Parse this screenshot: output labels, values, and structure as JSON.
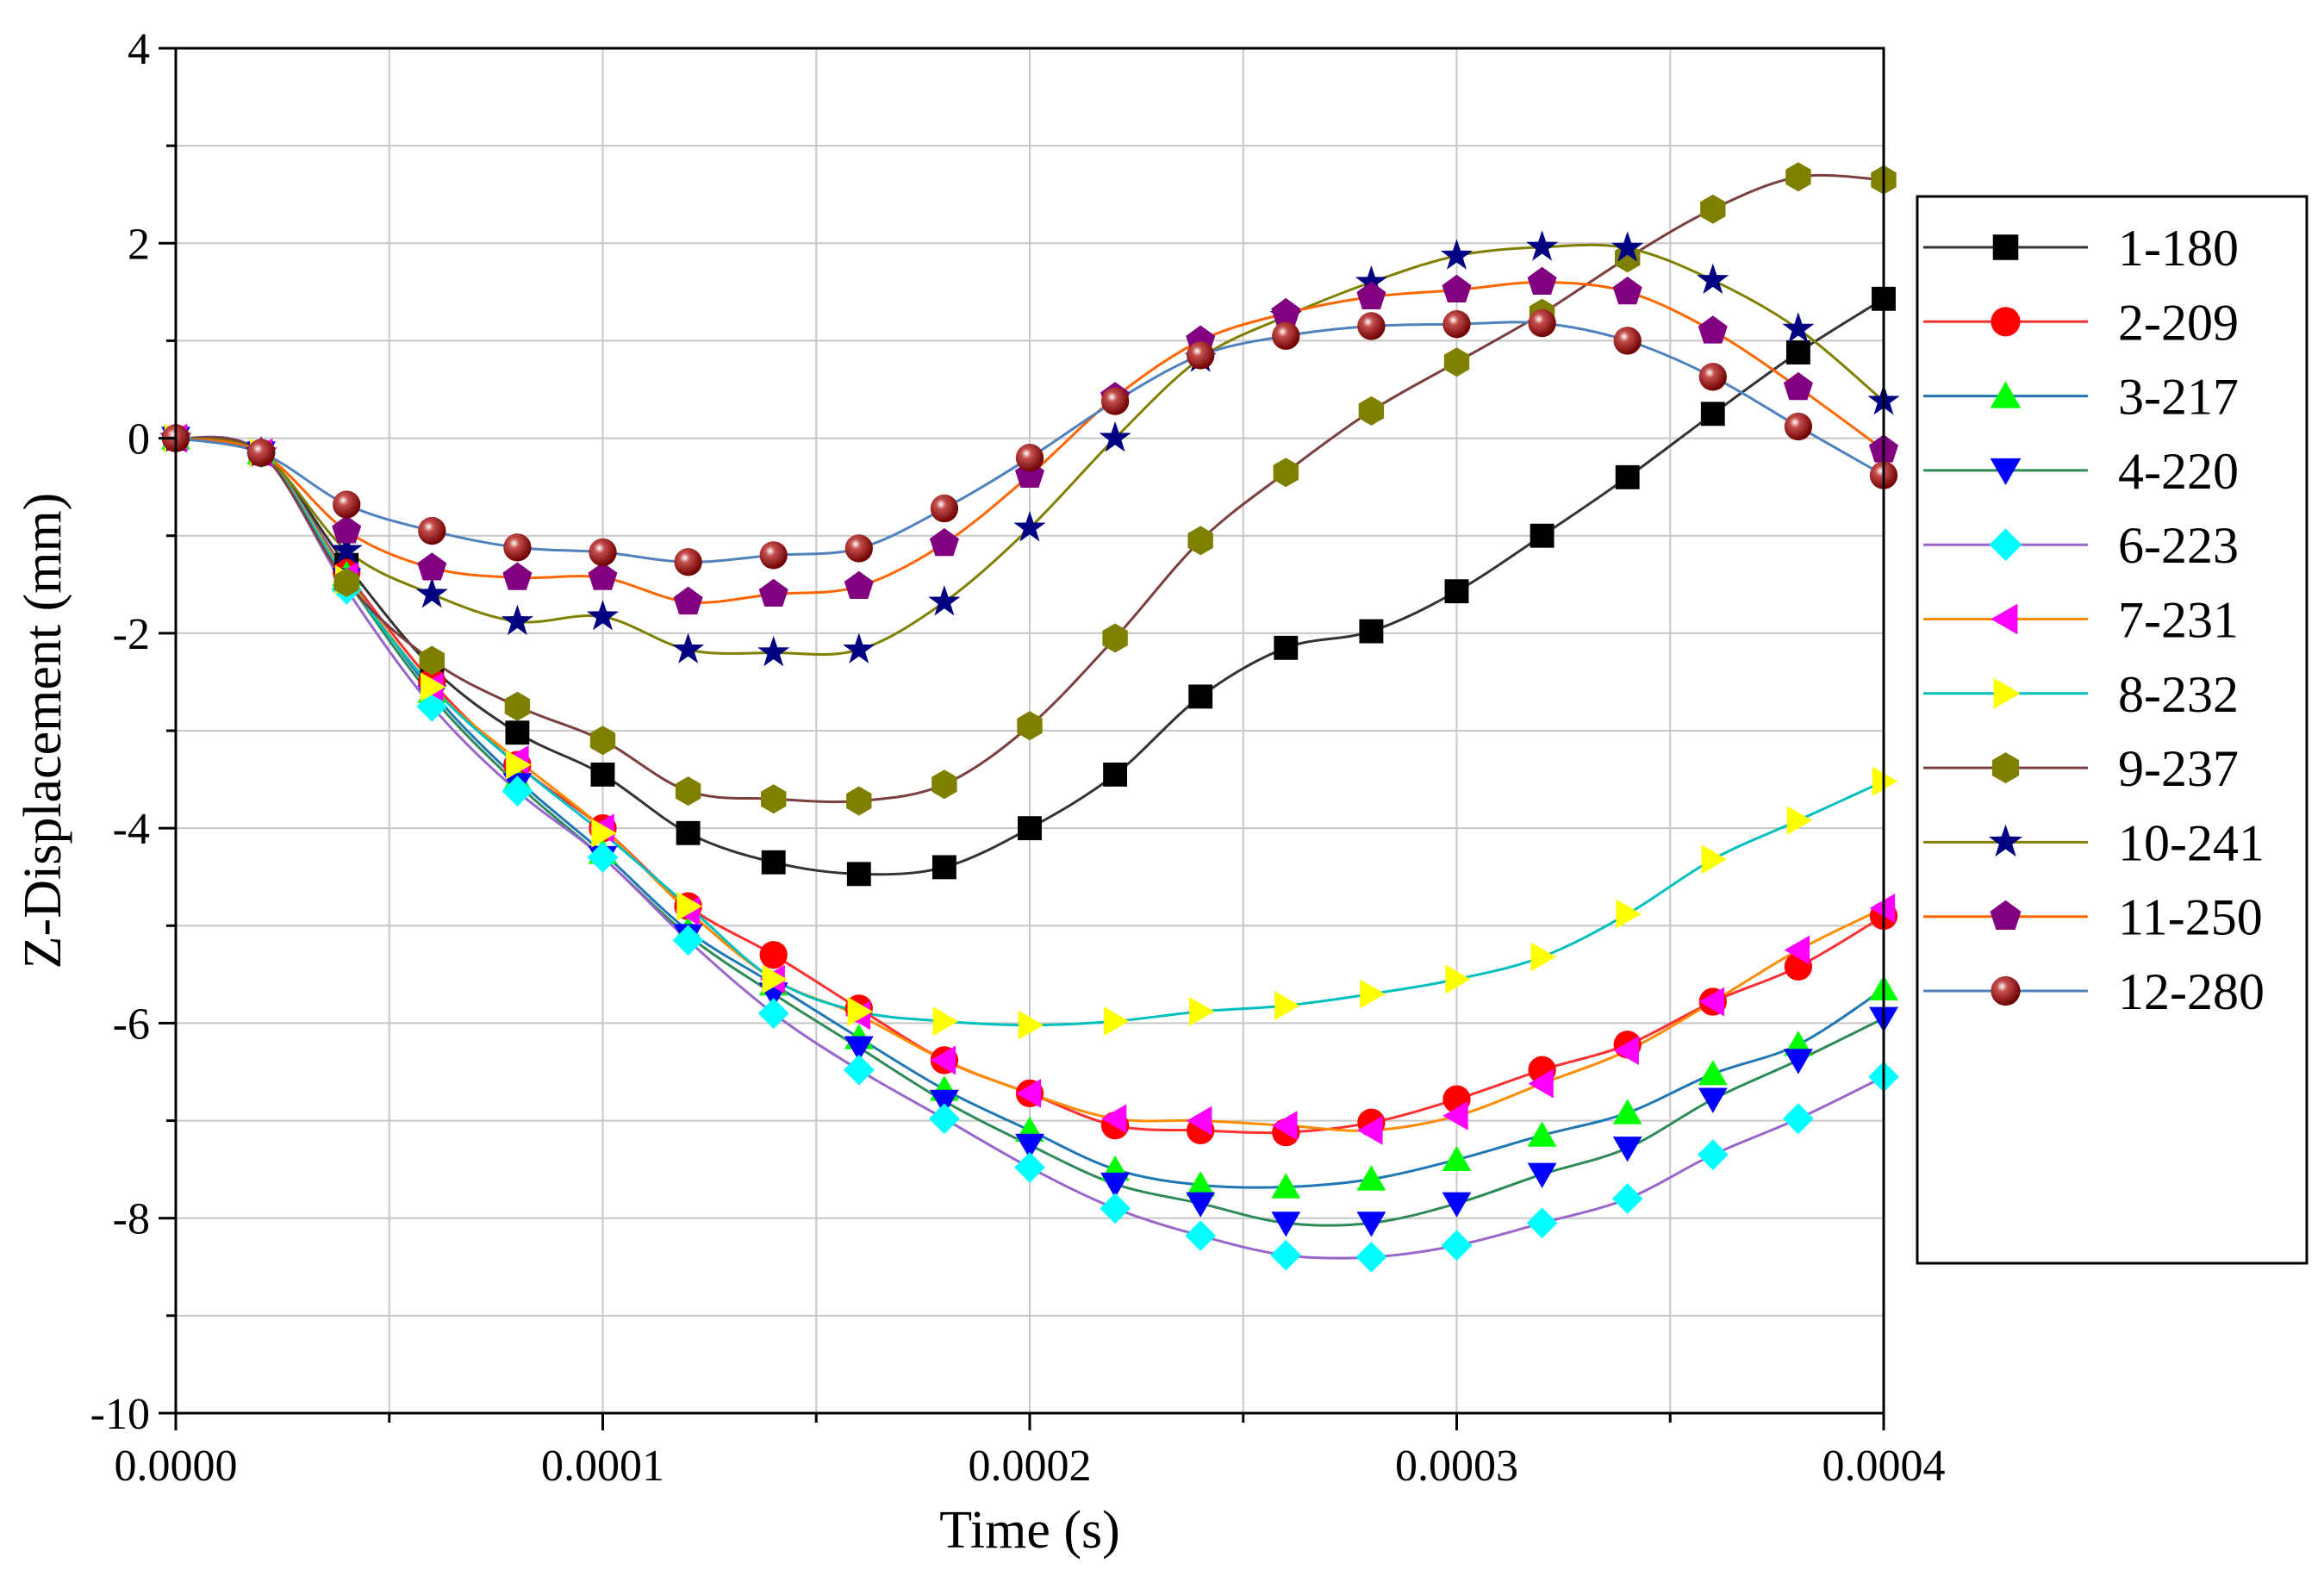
{
  "chart_data": {
    "type": "line",
    "title": "",
    "xlabel": "Time (s)",
    "ylabel": "Z-Displacement (mm)",
    "xlim": [
      0,
      0.0004
    ],
    "ylim": [
      -10,
      4
    ],
    "grid": true,
    "legend_position": "right",
    "x_ticks": [
      0,
      0.0001,
      0.0002,
      0.0003,
      0.0004
    ],
    "x_tick_labels": [
      "0.0000",
      "0.0001",
      "0.0002",
      "0.0003",
      "0.0004"
    ],
    "y_ticks": [
      -10,
      -8,
      -6,
      -4,
      -2,
      0,
      2,
      4
    ],
    "y_tick_labels": [
      "-10",
      "-8",
      "-6",
      "-4",
      "-2",
      "0",
      "2",
      "4"
    ],
    "x": [
      0,
      2e-05,
      4e-05,
      6e-05,
      8e-05,
      0.0001,
      0.00012,
      0.00014,
      0.00016,
      0.00018,
      0.0002,
      0.00022,
      0.00024,
      0.00026,
      0.00028,
      0.0003,
      0.00032,
      0.00034,
      0.00036,
      0.00038,
      0.0004
    ],
    "series": [
      {
        "name": "1-180",
        "color": "#000000",
        "line_color": "#333333",
        "marker": "square",
        "values": [
          0,
          -0.15,
          -1.3,
          -2.35,
          -3.02,
          -3.45,
          -4.05,
          -4.35,
          -4.47,
          -4.4,
          -4.0,
          -3.45,
          -2.65,
          -2.15,
          -1.98,
          -1.57,
          -1.0,
          -0.4,
          0.25,
          0.88,
          1.43
        ]
      },
      {
        "name": "2-209",
        "color": "#ff0000",
        "line_color": "#ff3030",
        "marker": "circle",
        "values": [
          0,
          -0.15,
          -1.38,
          -2.5,
          -3.35,
          -4.0,
          -4.8,
          -5.3,
          -5.85,
          -6.38,
          -6.72,
          -7.05,
          -7.1,
          -7.12,
          -7.02,
          -6.78,
          -6.48,
          -6.22,
          -5.78,
          -5.42,
          -4.9
        ]
      },
      {
        "name": "3-217",
        "color": "#00ff00",
        "line_color": "#1f77b4",
        "marker": "triangle-up",
        "values": [
          0,
          -0.15,
          -1.4,
          -2.6,
          -3.5,
          -4.25,
          -5.05,
          -5.6,
          -6.15,
          -6.68,
          -7.1,
          -7.5,
          -7.66,
          -7.68,
          -7.6,
          -7.4,
          -7.15,
          -6.92,
          -6.52,
          -6.22,
          -5.65
        ]
      },
      {
        "name": "4-220",
        "color": "#0000ff",
        "line_color": "#2e8b57",
        "marker": "triangle-down",
        "values": [
          0,
          -0.15,
          -1.45,
          -2.65,
          -3.55,
          -4.3,
          -5.1,
          -5.7,
          -6.25,
          -6.8,
          -7.25,
          -7.65,
          -7.85,
          -8.05,
          -8.05,
          -7.85,
          -7.55,
          -7.28,
          -6.78,
          -6.38,
          -5.95
        ]
      },
      {
        "name": "6-223",
        "color": "#00ffff",
        "line_color": "#9966cc",
        "marker": "diamond",
        "values": [
          0,
          -0.15,
          -1.55,
          -2.75,
          -3.62,
          -4.3,
          -5.15,
          -5.9,
          -6.48,
          -6.98,
          -7.48,
          -7.9,
          -8.18,
          -8.38,
          -8.4,
          -8.28,
          -8.05,
          -7.8,
          -7.35,
          -6.98,
          -6.55
        ]
      },
      {
        "name": "7-231",
        "color": "#ff00ff",
        "line_color": "#ff8c00",
        "marker": "triangle-left",
        "values": [
          0,
          -0.15,
          -1.42,
          -2.55,
          -3.3,
          -4.0,
          -4.85,
          -5.55,
          -5.92,
          -6.38,
          -6.72,
          -6.98,
          -7.0,
          -7.05,
          -7.1,
          -6.95,
          -6.62,
          -6.28,
          -5.78,
          -5.25,
          -4.82
        ]
      },
      {
        "name": "8-232",
        "color": "#ffff00",
        "line_color": "#00bfbf",
        "marker": "triangle-right",
        "values": [
          0,
          -0.15,
          -1.45,
          -2.55,
          -3.35,
          -4.05,
          -4.8,
          -5.55,
          -5.88,
          -5.98,
          -6.02,
          -5.98,
          -5.88,
          -5.82,
          -5.7,
          -5.55,
          -5.32,
          -4.88,
          -4.32,
          -3.92,
          -3.52
        ]
      },
      {
        "name": "9-237",
        "color": "#808000",
        "line_color": "#7b3f3f",
        "marker": "hexagon",
        "values": [
          0,
          -0.15,
          -1.48,
          -2.28,
          -2.75,
          -3.1,
          -3.62,
          -3.7,
          -3.72,
          -3.55,
          -2.95,
          -2.05,
          -1.05,
          -0.35,
          0.28,
          0.78,
          1.28,
          1.85,
          2.35,
          2.68,
          2.65
        ]
      },
      {
        "name": "10-241",
        "color": "#000080",
        "line_color": "#808000",
        "marker": "star",
        "values": [
          0,
          -0.15,
          -1.15,
          -1.6,
          -1.88,
          -1.83,
          -2.17,
          -2.2,
          -2.17,
          -1.68,
          -0.92,
          0.0,
          0.82,
          1.25,
          1.6,
          1.87,
          1.96,
          1.95,
          1.62,
          1.12,
          0.38
        ]
      },
      {
        "name": "11-250",
        "color": "#800080",
        "line_color": "#ff6600",
        "marker": "pentagon",
        "values": [
          0,
          -0.15,
          -0.95,
          -1.33,
          -1.43,
          -1.43,
          -1.68,
          -1.6,
          -1.52,
          -1.08,
          -0.38,
          0.42,
          1.0,
          1.28,
          1.45,
          1.52,
          1.6,
          1.5,
          1.1,
          0.52,
          -0.12
        ]
      },
      {
        "name": "12-280",
        "color": "#800000",
        "line_color": "#4f81bd",
        "marker": "sphere",
        "values": [
          0,
          -0.15,
          -0.68,
          -0.95,
          -1.12,
          -1.17,
          -1.27,
          -1.2,
          -1.13,
          -0.72,
          -0.2,
          0.38,
          0.85,
          1.05,
          1.15,
          1.17,
          1.18,
          1.0,
          0.63,
          0.12,
          -0.38
        ]
      }
    ]
  }
}
